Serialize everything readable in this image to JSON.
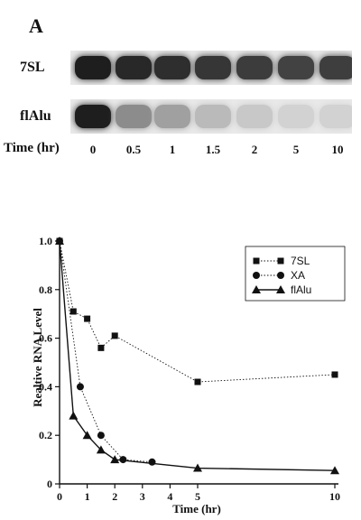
{
  "panel_label": "A",
  "gel": {
    "lanes": [
      "7SL",
      "flAlu"
    ],
    "time_label": "Time (hr)",
    "times": [
      "0",
      "0.5",
      "1",
      "1.5",
      "2",
      "5",
      "10"
    ],
    "band_intensity": {
      "7SL": [
        1.0,
        0.95,
        0.92,
        0.88,
        0.85,
        0.82,
        0.84
      ],
      "flAlu": [
        1.0,
        0.45,
        0.35,
        0.22,
        0.15,
        0.1,
        0.1
      ]
    }
  },
  "chart_data": {
    "type": "line",
    "xlabel": "Time (hr)",
    "ylabel": "Realtive RNA Level",
    "xlim": [
      0,
      10
    ],
    "ylim": [
      0,
      1.0
    ],
    "xticks": [
      "0",
      "1",
      "2",
      "3",
      "4",
      "5",
      "10"
    ],
    "xtick_values": [
      0,
      1,
      2,
      3,
      4,
      5,
      10
    ],
    "yticks": [
      "0",
      "0.2",
      "0.4",
      "0.6",
      "0.8",
      "1.0"
    ],
    "ytick_values": [
      0,
      0.2,
      0.4,
      0.6,
      0.8,
      1.0
    ],
    "legend_position": "top-right",
    "grid": false,
    "series": [
      {
        "name": "7SL",
        "marker": "square",
        "line": "dotted",
        "x": [
          0,
          0.5,
          1,
          1.5,
          2,
          5,
          10
        ],
        "y": [
          1.0,
          0.71,
          0.68,
          0.56,
          0.61,
          0.42,
          0.45
        ]
      },
      {
        "name": "XA",
        "marker": "circle",
        "line": "dotted",
        "x": [
          0,
          0.75,
          1.5,
          2.3,
          3.35
        ],
        "y": [
          1.0,
          0.4,
          0.2,
          0.1,
          0.09
        ]
      },
      {
        "name": "flAlu",
        "marker": "triangle",
        "line": "solid",
        "x": [
          0,
          0.5,
          1,
          1.5,
          2,
          5,
          10
        ],
        "y": [
          1.0,
          0.28,
          0.2,
          0.14,
          0.1,
          0.065,
          0.055
        ]
      }
    ]
  }
}
